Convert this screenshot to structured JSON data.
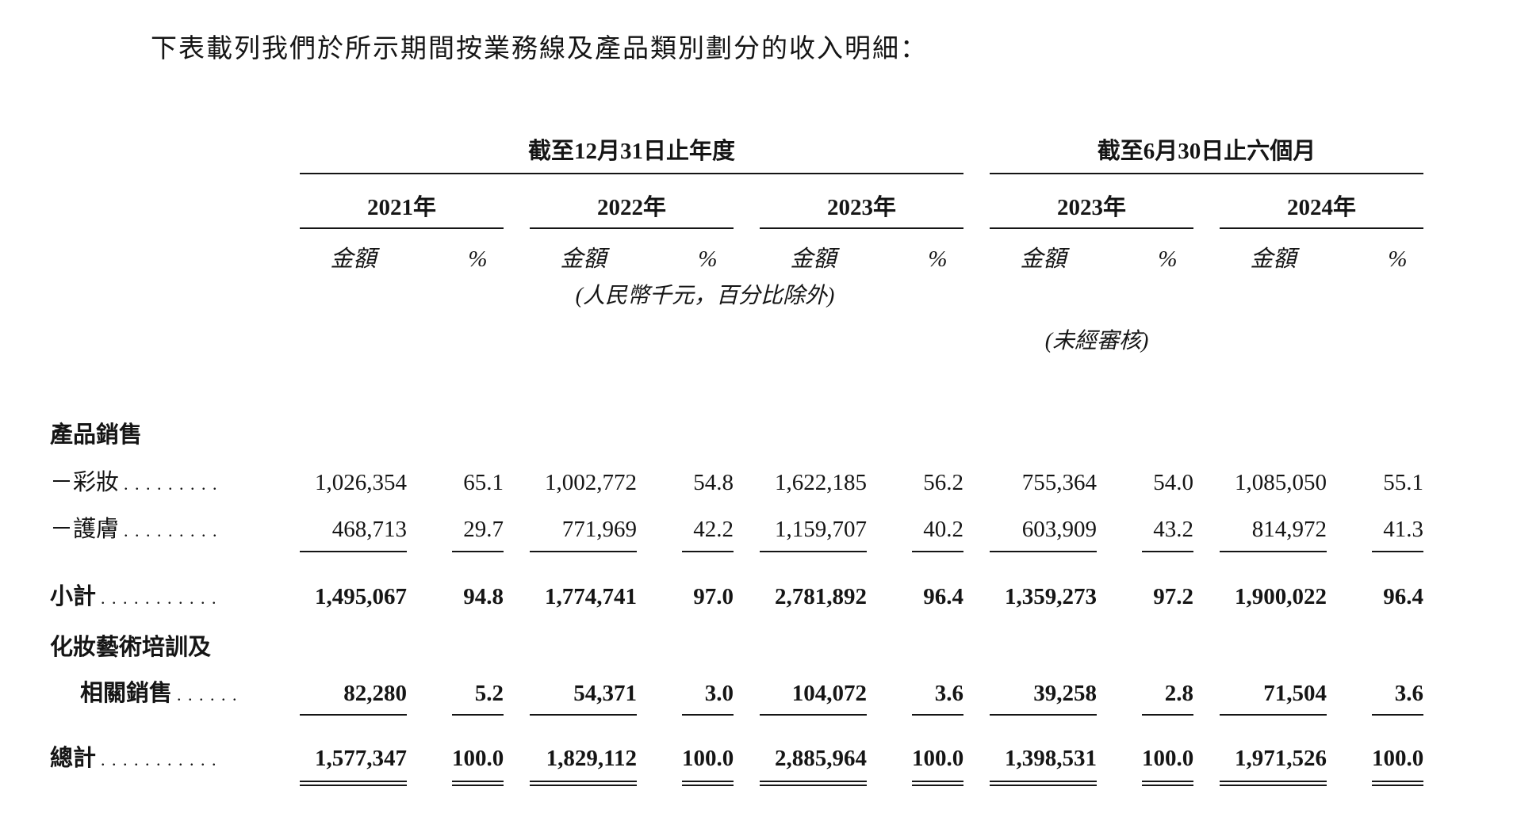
{
  "title": "下表載列我們於所示期間按業務線及產品類別劃分的收入明細：",
  "table": {
    "period_groups": [
      {
        "label": "截至12月31日止年度"
      },
      {
        "label": "截至6月30日止六個月"
      }
    ],
    "years": [
      "2021年",
      "2022年",
      "2023年",
      "2023年",
      "2024年"
    ],
    "col_headers": {
      "amount": "金額",
      "percent": "%"
    },
    "notes": {
      "unit": "(人民幣千元，百分比除外)",
      "unaudited": "(未經審核)"
    },
    "rows": [
      {
        "label": "產品銷售"
      },
      {
        "label": "－彩妝",
        "dots": ". . . . . . . . .",
        "values": [
          "1,026,354",
          "65.1",
          "1,002,772",
          "54.8",
          "1,622,185",
          "56.2",
          "755,364",
          "54.0",
          "1,085,050",
          "55.1"
        ]
      },
      {
        "label": "－護膚",
        "dots": ". . . . . . . . .",
        "values": [
          "468,713",
          "29.7",
          "771,969",
          "42.2",
          "1,159,707",
          "40.2",
          "603,909",
          "43.2",
          "814,972",
          "41.3"
        ]
      },
      {
        "label": "小計",
        "dots": ". . . . . . . . . . .",
        "values": [
          "1,495,067",
          "94.8",
          "1,774,741",
          "97.0",
          "2,781,892",
          "96.4",
          "1,359,273",
          "97.2",
          "1,900,022",
          "96.4"
        ]
      },
      {
        "label": "化妝藝術培訓及"
      },
      {
        "label": "相關銷售",
        "dots": ". . . . . .",
        "values": [
          "82,280",
          "5.2",
          "54,371",
          "3.0",
          "104,072",
          "3.6",
          "39,258",
          "2.8",
          "71,504",
          "3.6"
        ]
      },
      {
        "label": "總計",
        "dots": ". . . . . . . . . . .",
        "values": [
          "1,577,347",
          "100.0",
          "1,829,112",
          "100.0",
          "2,885,964",
          "100.0",
          "1,398,531",
          "100.0",
          "1,971,526",
          "100.0"
        ]
      }
    ]
  }
}
